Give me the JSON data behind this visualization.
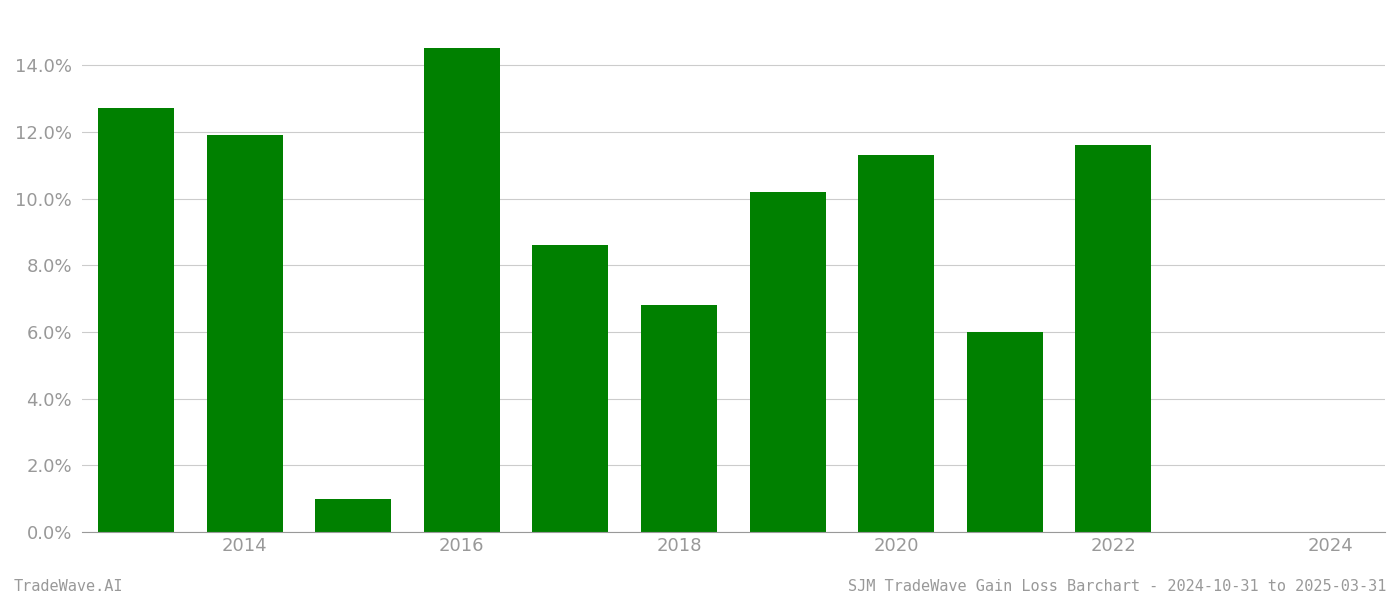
{
  "years": [
    2013,
    2014,
    2015,
    2016,
    2017,
    2018,
    2019,
    2020,
    2021,
    2022,
    2023
  ],
  "values": [
    0.127,
    0.119,
    0.01,
    0.145,
    0.086,
    0.068,
    0.102,
    0.113,
    0.06,
    0.116,
    0.0
  ],
  "bar_color": "#008000",
  "background_color": "#ffffff",
  "footer_left": "TradeWave.AI",
  "footer_right": "SJM TradeWave Gain Loss Barchart - 2024-10-31 to 2025-03-31",
  "ylim": [
    0,
    0.155
  ],
  "yticks": [
    0.0,
    0.02,
    0.04,
    0.06,
    0.08,
    0.1,
    0.12,
    0.14
  ],
  "xticks": [
    2014,
    2016,
    2018,
    2020,
    2022,
    2024
  ],
  "xlim": [
    2012.5,
    2024.5
  ],
  "grid_color": "#cccccc",
  "tick_label_color": "#999999",
  "axis_color": "#999999",
  "bar_width": 0.7
}
